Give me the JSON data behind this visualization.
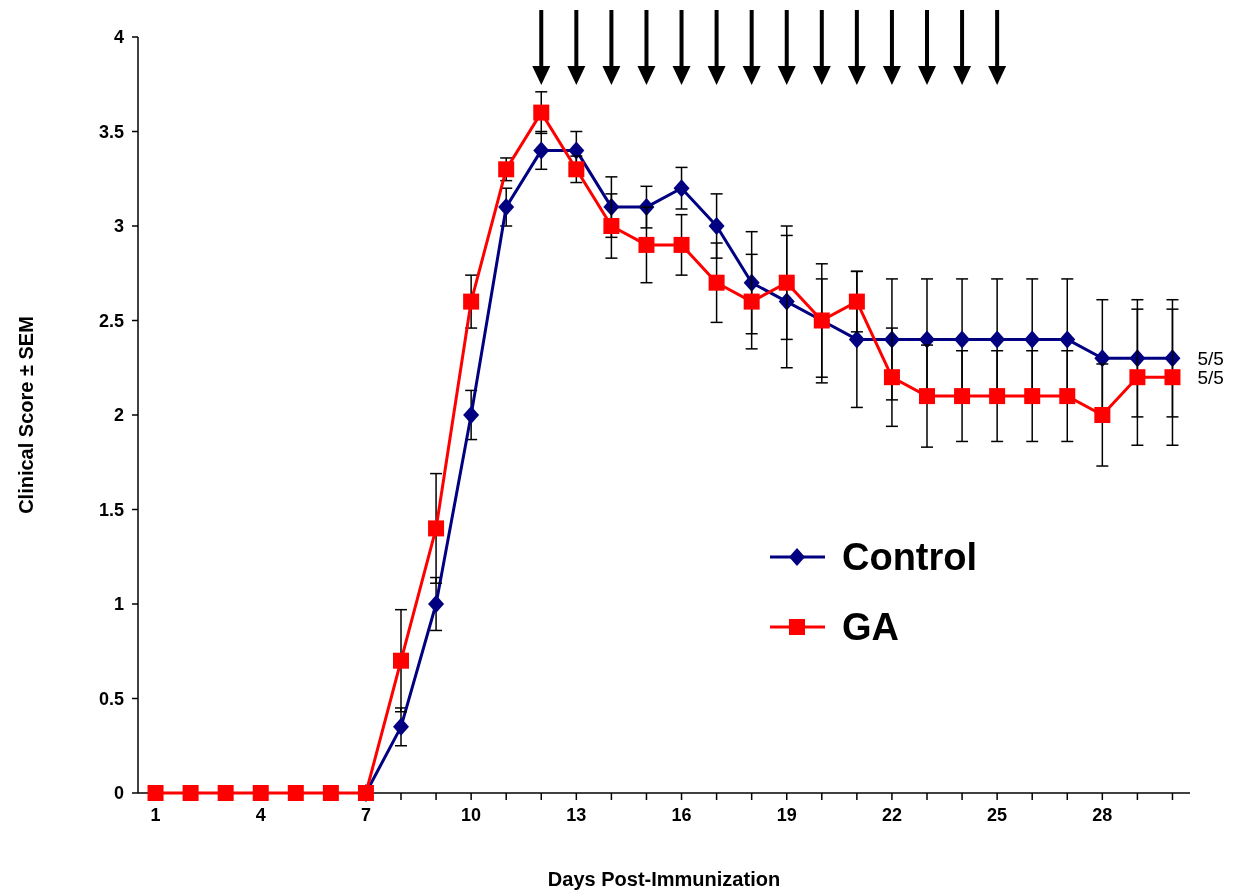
{
  "chart_data": {
    "type": "line",
    "xlabel": "Days Post-Immunization",
    "ylabel": "Clinical Score ± SEM",
    "x": [
      1,
      2,
      3,
      4,
      5,
      6,
      7,
      8,
      9,
      10,
      11,
      12,
      13,
      14,
      15,
      16,
      17,
      18,
      19,
      20,
      21,
      22,
      23,
      24,
      25,
      26,
      27,
      28,
      29,
      30
    ],
    "xlim": [
      0.5,
      30.5
    ],
    "xticks": [
      1,
      {
        "value": 2,
        "label": null
      },
      {
        "value": 3,
        "label": null
      },
      4,
      {
        "value": 5,
        "label": null
      },
      {
        "value": 6,
        "label": null
      },
      7,
      {
        "value": 8,
        "label": null
      },
      {
        "value": 9,
        "label": null
      },
      10,
      {
        "value": 11,
        "label": null
      },
      {
        "value": 12,
        "label": null
      },
      13,
      {
        "value": 14,
        "label": null
      },
      {
        "value": 15,
        "label": null
      },
      16,
      {
        "value": 17,
        "label": null
      },
      {
        "value": 18,
        "label": null
      },
      19,
      {
        "value": 20,
        "label": null
      },
      {
        "value": 21,
        "label": null
      },
      22,
      {
        "value": 23,
        "label": null
      },
      {
        "value": 24,
        "label": null
      },
      25,
      {
        "value": 26,
        "label": null
      },
      {
        "value": 27,
        "label": null
      },
      28,
      {
        "value": 29,
        "label": null
      },
      {
        "value": 30,
        "label": null
      }
    ],
    "ylim": [
      0,
      4
    ],
    "yticks": [
      0,
      0.5,
      1,
      1.5,
      2,
      2.5,
      3,
      3.5,
      4
    ],
    "grid": false,
    "legend": "right",
    "line_style": "solid",
    "series": [
      {
        "name": "Control",
        "color": "#000080",
        "marker": "diamond",
        "values": [
          null,
          null,
          null,
          null,
          null,
          null,
          0,
          0.35,
          1,
          2,
          3.1,
          3.4,
          3.4,
          3.1,
          3.1,
          3.2,
          3,
          2.7,
          2.6,
          2.5,
          2.4,
          2.4,
          2.4,
          2.4,
          2.4,
          2.4,
          2.4,
          2.3,
          2.3,
          2.3
        ],
        "errors": [
          null,
          null,
          null,
          null,
          null,
          null,
          null,
          0.1,
          0.14,
          0.13,
          0.1,
          0.1,
          0.1,
          0.16,
          0.11,
          0.11,
          0.17,
          0.27,
          0.35,
          0.3,
          0.36,
          0.32,
          0.32,
          0.32,
          0.32,
          0.32,
          0.32,
          0.31,
          0.31,
          0.31
        ]
      },
      {
        "name": "GA",
        "color": "#ff0000",
        "marker": "square",
        "values": [
          0,
          0,
          0,
          0,
          0,
          0,
          0,
          0.7,
          1.4,
          2.6,
          3.3,
          3.6,
          3.3,
          3,
          2.9,
          2.9,
          2.7,
          2.6,
          2.7,
          2.5,
          2.6,
          2.2,
          2.1,
          2.1,
          2.1,
          2.1,
          2.1,
          2,
          2.2,
          2.2
        ],
        "errors": [
          null,
          null,
          null,
          null,
          null,
          null,
          null,
          0.27,
          0.29,
          0.14,
          0.06,
          0.11,
          0.07,
          0.17,
          0.2,
          0.16,
          0.21,
          0.25,
          0.3,
          [
            2.17,
            2.72
          ],
          0.16,
          0.26,
          0.27,
          0.24,
          0.24,
          0.24,
          0.24,
          0.27,
          0.36,
          0.36
        ]
      }
    ],
    "annotations": [
      {
        "text": "5/5",
        "x": 30,
        "y": 2.3
      },
      {
        "text": "5/5",
        "x": 30,
        "y": 2.2
      }
    ]
  }
}
